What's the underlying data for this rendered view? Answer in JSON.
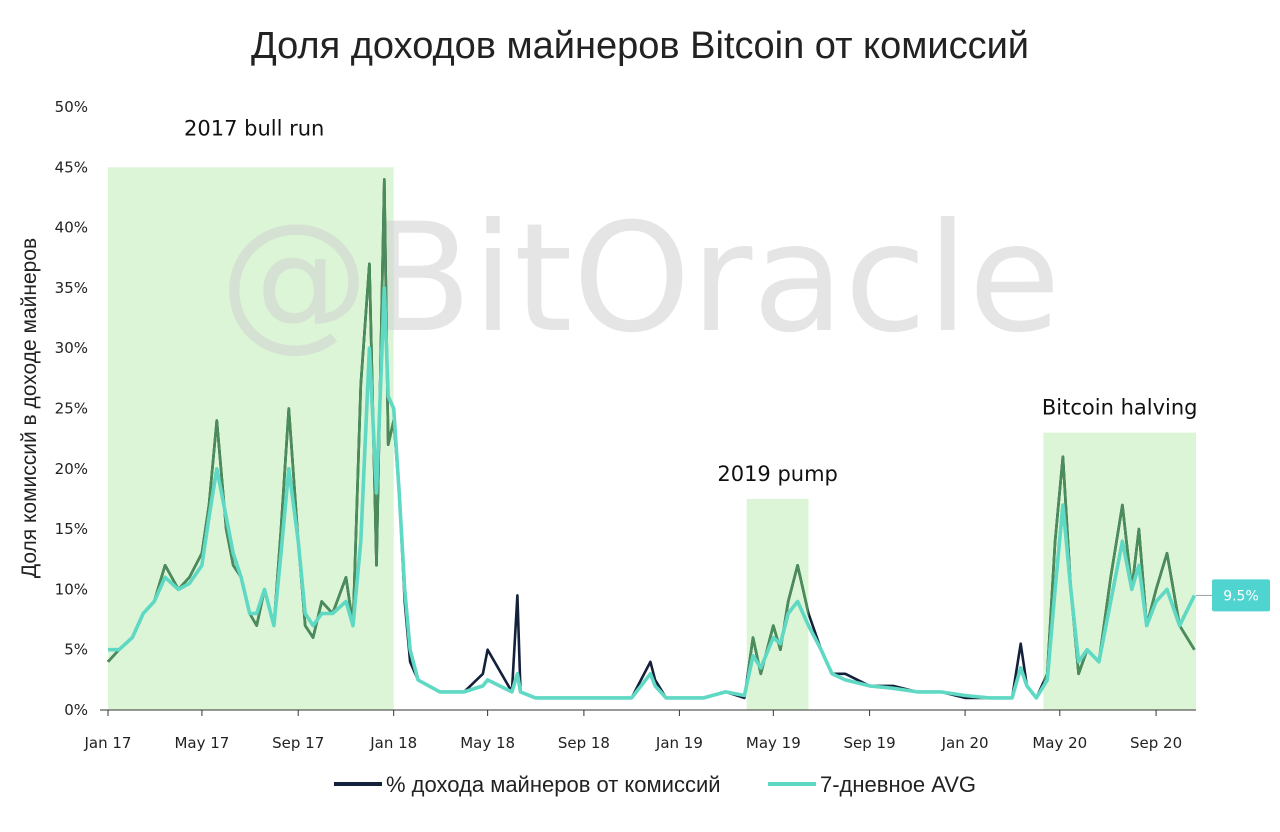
{
  "chart_data": {
    "type": "line",
    "title": "Доля доходов майнеров Bitcoin от комиссий",
    "xlabel": "",
    "ylabel": "Доля комиссий в доходе майнеров",
    "ylim": [
      0,
      50
    ],
    "xlim": [
      "2017-01-01",
      "2020-10-22"
    ],
    "yticks": [
      "0%",
      "5%",
      "10%",
      "15%",
      "20%",
      "25%",
      "30%",
      "35%",
      "40%",
      "45%",
      "50%"
    ],
    "xticks": [
      {
        "label": "Jan 17",
        "date": "2017-01-01"
      },
      {
        "label": "May 17",
        "date": "2017-05-01"
      },
      {
        "label": "Sep 17",
        "date": "2017-09-01"
      },
      {
        "label": "Jan 18",
        "date": "2018-01-01"
      },
      {
        "label": "May 18",
        "date": "2018-05-01"
      },
      {
        "label": "Sep 18",
        "date": "2018-09-01"
      },
      {
        "label": "Jan 19",
        "date": "2019-01-01"
      },
      {
        "label": "May 19",
        "date": "2019-05-01"
      },
      {
        "label": "Sep 19",
        "date": "2019-09-01"
      },
      {
        "label": "Jan 20",
        "date": "2020-01-01"
      },
      {
        "label": "May 20",
        "date": "2020-05-01"
      },
      {
        "label": "Sep 20",
        "date": "2020-09-01"
      }
    ],
    "regions": [
      {
        "label": "2017 bull run",
        "start": "2017-01-01",
        "end": "2018-01-01",
        "top": 45
      },
      {
        "label": "2019 pump",
        "start": "2019-03-28",
        "end": "2019-06-15",
        "top": 17.5
      },
      {
        "label": "Bitcoin halving",
        "start": "2020-04-10",
        "end": "2020-10-22",
        "top": 23
      }
    ],
    "end_label": "9.5%",
    "watermark": "@BitOracle",
    "grid": false,
    "legend_position": "bottom",
    "series": [
      {
        "name": "% дохода майнеров от комиссий",
        "color": "#14213a",
        "x": [
          "2017-01-01",
          "2017-01-15",
          "2017-02-01",
          "2017-02-15",
          "2017-03-01",
          "2017-03-15",
          "2017-04-01",
          "2017-04-15",
          "2017-05-01",
          "2017-05-10",
          "2017-05-20",
          "2017-06-01",
          "2017-06-10",
          "2017-06-20",
          "2017-07-01",
          "2017-07-10",
          "2017-07-20",
          "2017-08-01",
          "2017-08-10",
          "2017-08-20",
          "2017-09-01",
          "2017-09-10",
          "2017-09-20",
          "2017-10-01",
          "2017-10-15",
          "2017-11-01",
          "2017-11-10",
          "2017-11-20",
          "2017-12-01",
          "2017-12-10",
          "2017-12-20",
          "2017-12-25",
          "2018-01-01",
          "2018-01-08",
          "2018-01-15",
          "2018-01-22",
          "2018-02-01",
          "2018-02-15",
          "2018-03-01",
          "2018-04-01",
          "2018-04-25",
          "2018-05-01",
          "2018-06-01",
          "2018-06-08",
          "2018-06-12",
          "2018-07-01",
          "2018-08-01",
          "2018-09-01",
          "2018-10-01",
          "2018-11-01",
          "2018-11-25",
          "2018-12-01",
          "2018-12-15",
          "2019-01-01",
          "2019-02-01",
          "2019-03-01",
          "2019-03-25",
          "2019-04-05",
          "2019-04-15",
          "2019-05-01",
          "2019-05-10",
          "2019-05-20",
          "2019-06-01",
          "2019-06-15",
          "2019-07-01",
          "2019-07-15",
          "2019-08-01",
          "2019-09-01",
          "2019-10-01",
          "2019-11-01",
          "2019-12-01",
          "2020-01-01",
          "2020-02-01",
          "2020-03-01",
          "2020-03-12",
          "2020-03-20",
          "2020-04-01",
          "2020-04-15",
          "2020-04-25",
          "2020-05-05",
          "2020-05-15",
          "2020-05-25",
          "2020-06-05",
          "2020-06-20",
          "2020-07-05",
          "2020-07-20",
          "2020-08-01",
          "2020-08-10",
          "2020-08-20",
          "2020-09-01",
          "2020-09-15",
          "2020-10-01",
          "2020-10-20"
        ],
        "values": [
          4,
          5,
          6,
          8,
          9,
          12,
          10,
          11,
          13,
          17,
          24,
          15,
          12,
          11,
          8,
          7,
          10,
          7,
          15,
          25,
          14,
          7,
          6,
          9,
          8,
          11,
          7,
          27,
          37,
          12,
          44,
          22,
          24,
          18,
          9,
          4,
          2.5,
          2,
          1.5,
          1.5,
          3,
          5,
          1.5,
          9.5,
          1.5,
          1,
          1,
          1,
          1,
          1,
          4,
          2.5,
          1,
          1,
          1,
          1.5,
          1,
          6,
          3,
          7,
          5,
          9,
          12,
          8,
          5,
          3,
          3,
          2,
          2,
          1.5,
          1.5,
          1,
          1,
          1,
          5.5,
          2,
          1,
          3,
          14,
          21,
          10,
          3,
          5,
          4,
          11,
          17,
          10,
          15,
          7,
          10,
          13,
          7,
          5
        ]
      },
      {
        "name": "7-дневное AVG",
        "color": "#5fd8c4",
        "x": [
          "2017-01-01",
          "2017-01-15",
          "2017-02-01",
          "2017-02-15",
          "2017-03-01",
          "2017-03-15",
          "2017-04-01",
          "2017-04-15",
          "2017-05-01",
          "2017-05-10",
          "2017-05-20",
          "2017-06-01",
          "2017-06-10",
          "2017-06-20",
          "2017-07-01",
          "2017-07-10",
          "2017-07-20",
          "2017-08-01",
          "2017-08-10",
          "2017-08-20",
          "2017-09-01",
          "2017-09-10",
          "2017-09-20",
          "2017-10-01",
          "2017-10-15",
          "2017-11-01",
          "2017-11-10",
          "2017-11-20",
          "2017-12-01",
          "2017-12-10",
          "2017-12-20",
          "2017-12-25",
          "2018-01-01",
          "2018-01-08",
          "2018-01-15",
          "2018-01-22",
          "2018-02-01",
          "2018-02-15",
          "2018-03-01",
          "2018-04-01",
          "2018-04-25",
          "2018-05-01",
          "2018-06-01",
          "2018-06-08",
          "2018-06-12",
          "2018-07-01",
          "2018-08-01",
          "2018-09-01",
          "2018-10-01",
          "2018-11-01",
          "2018-11-25",
          "2018-12-01",
          "2018-12-15",
          "2019-01-01",
          "2019-02-01",
          "2019-03-01",
          "2019-03-25",
          "2019-04-05",
          "2019-04-15",
          "2019-05-01",
          "2019-05-10",
          "2019-05-20",
          "2019-06-01",
          "2019-06-15",
          "2019-07-01",
          "2019-07-15",
          "2019-08-01",
          "2019-09-01",
          "2019-10-01",
          "2019-11-01",
          "2019-12-01",
          "2020-01-01",
          "2020-02-01",
          "2020-03-01",
          "2020-03-12",
          "2020-03-20",
          "2020-04-01",
          "2020-04-15",
          "2020-04-25",
          "2020-05-05",
          "2020-05-15",
          "2020-05-25",
          "2020-06-05",
          "2020-06-20",
          "2020-07-05",
          "2020-07-20",
          "2020-08-01",
          "2020-08-10",
          "2020-08-20",
          "2020-09-01",
          "2020-09-15",
          "2020-10-01",
          "2020-10-20"
        ],
        "values": [
          5,
          5,
          6,
          8,
          9,
          11,
          10,
          10.5,
          12,
          16,
          20,
          16,
          13,
          11,
          8,
          8,
          10,
          7,
          13,
          20,
          14,
          8,
          7,
          8,
          8,
          9,
          7,
          14,
          30,
          18,
          35,
          26,
          25,
          18,
          10,
          5,
          2.5,
          2,
          1.5,
          1.5,
          2,
          2.5,
          1.5,
          3,
          1.5,
          1,
          1,
          1,
          1,
          1,
          3,
          2,
          1,
          1,
          1,
          1.5,
          1.2,
          4.5,
          3.5,
          6,
          5.5,
          8,
          9,
          7,
          5,
          3,
          2.5,
          2,
          1.8,
          1.5,
          1.5,
          1.2,
          1,
          1,
          3.5,
          2,
          1,
          2.5,
          10,
          17,
          10,
          4,
          5,
          4,
          9,
          14,
          10,
          12,
          7,
          9,
          10,
          7,
          9.5
        ]
      }
    ]
  }
}
